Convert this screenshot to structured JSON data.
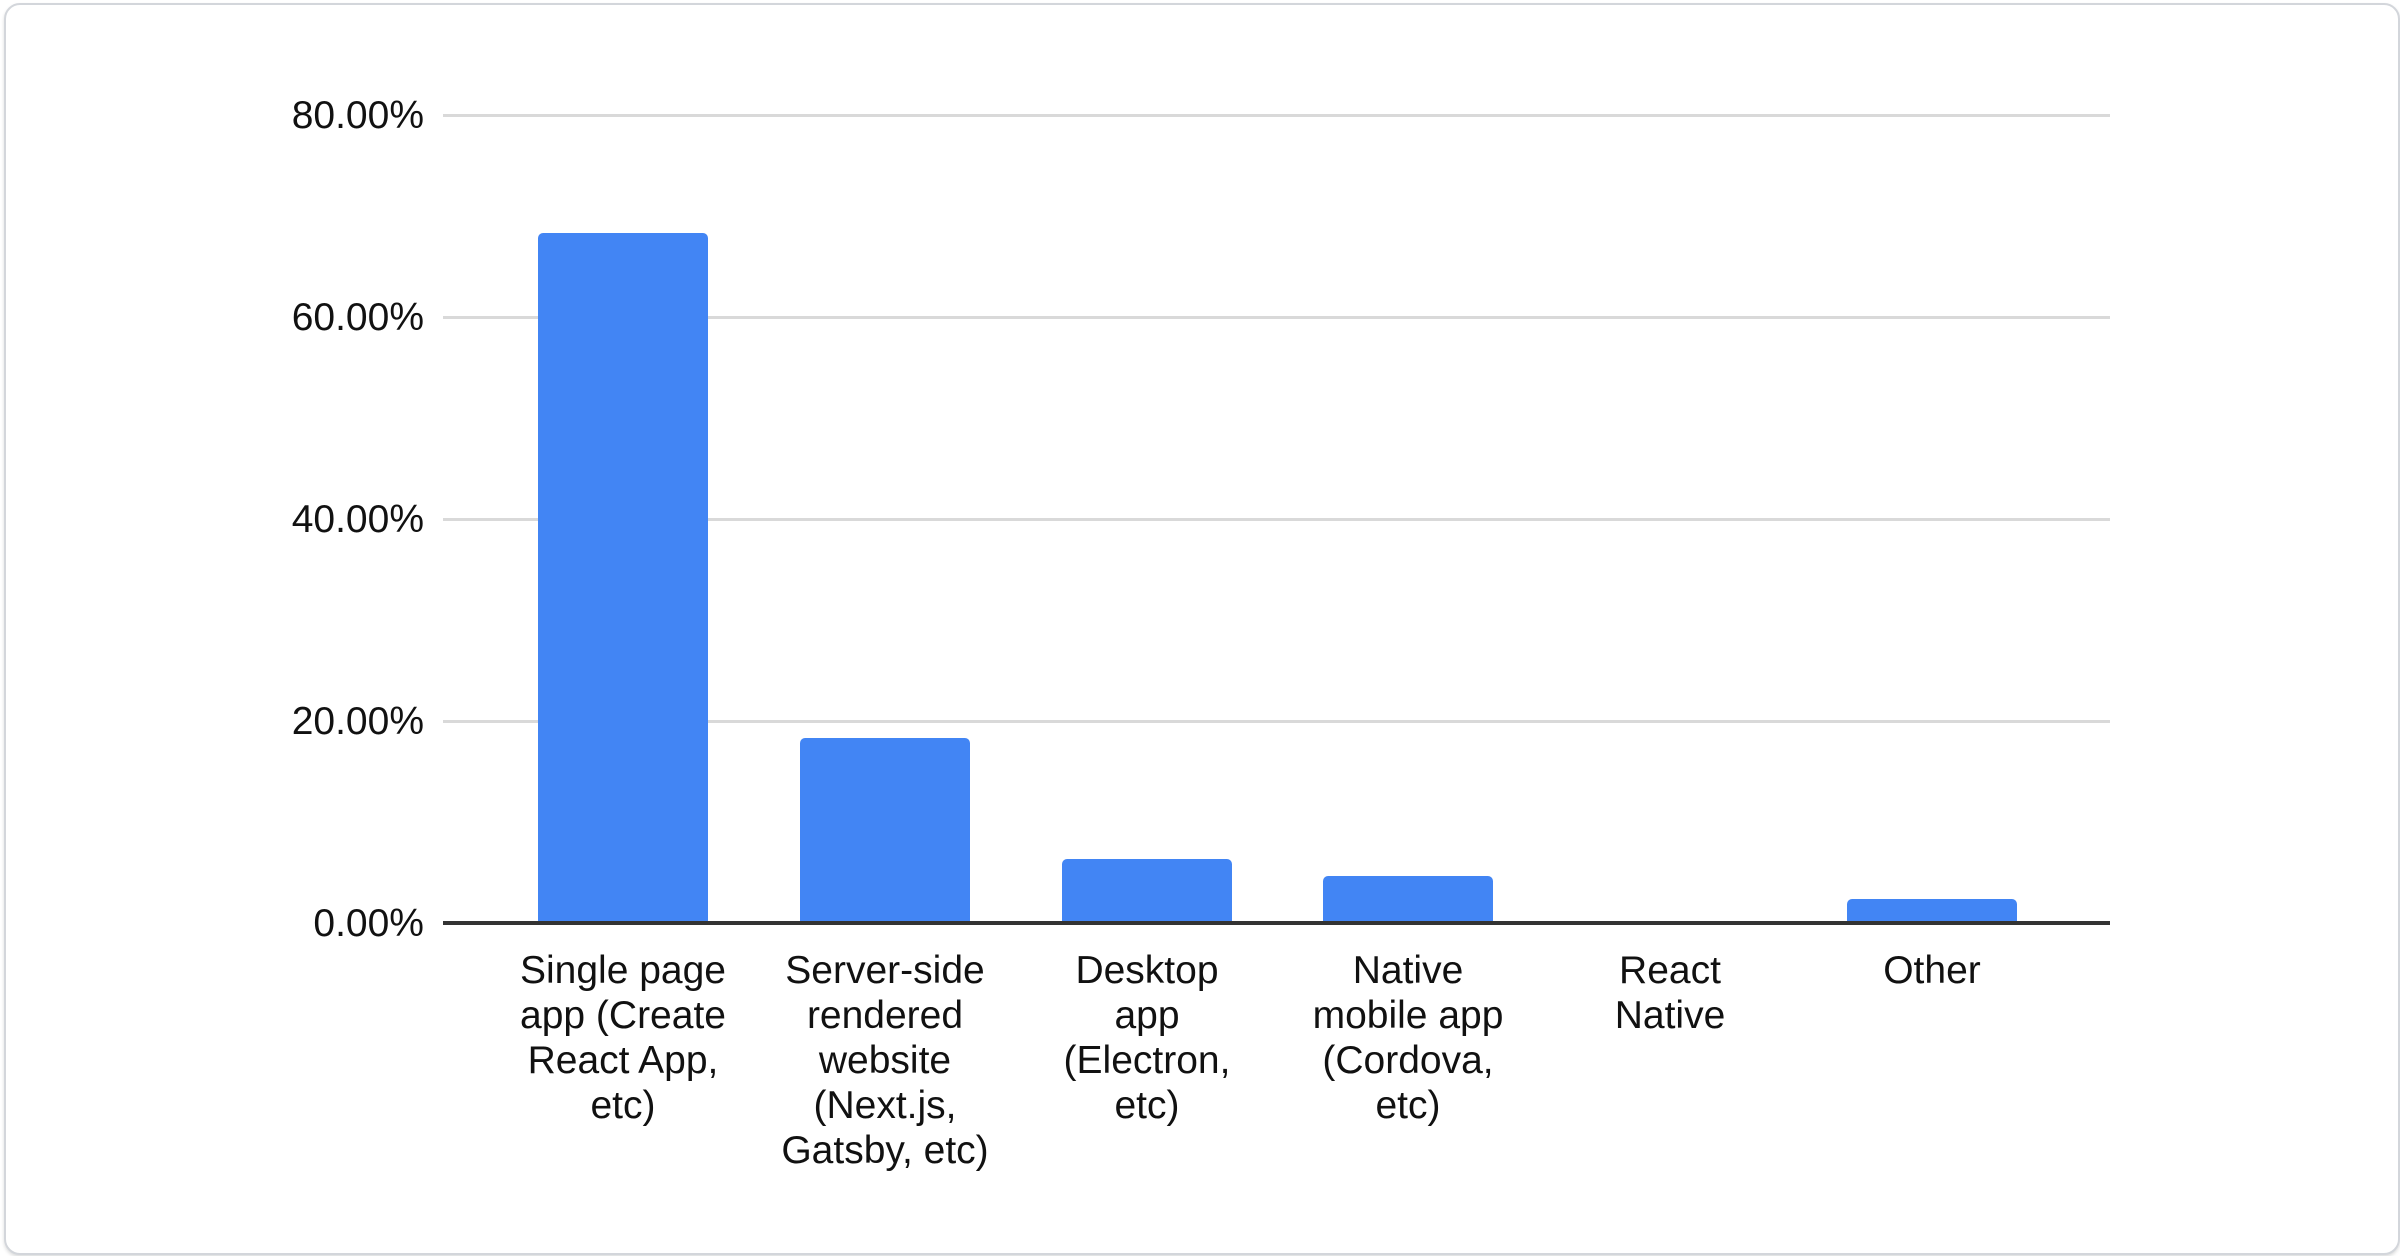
{
  "card": {
    "background": "#ffffff",
    "border_color": "#d3d6db"
  },
  "chart_data": {
    "type": "bar",
    "title": "",
    "xlabel": "",
    "ylabel": "",
    "ylim": [
      0,
      80
    ],
    "y_tick_step": 20,
    "grid": true,
    "legend": "none",
    "bar_color": "#4285f4",
    "grid_line_color": "#d9d9d9",
    "axis_line_color": "#333333",
    "text_color": "#111111",
    "y_ticks": [
      {
        "value": 80,
        "label": "80.00%"
      },
      {
        "value": 60,
        "label": "60.00%"
      },
      {
        "value": 40,
        "label": "40.00%"
      },
      {
        "value": 20,
        "label": "20.00%"
      },
      {
        "value": 0,
        "label": "0.00%"
      }
    ],
    "categories": [
      "Single page app (Create React App, etc)",
      "Server-side rendered website (Next.js, Gatsby, etc)",
      "Desktop app (Electron, etc)",
      "Native mobile app (Cordova, etc)",
      "React Native",
      "Other"
    ],
    "values": [
      68.3,
      18.3,
      6.3,
      4.7,
      0,
      2.4
    ],
    "columns": [
      {
        "category": "Single page app (Create React App, etc)",
        "value": 68.3,
        "lines": "Single page\napp (Create\nReact App,\netc)"
      },
      {
        "category": "Server-side rendered website (Next.js, Gatsby, etc)",
        "value": 18.3,
        "lines": "Server-side\nrendered\nwebsite\n(Next.js,\nGatsby, etc)"
      },
      {
        "category": "Desktop app (Electron, etc)",
        "value": 6.3,
        "lines": "Desktop\napp\n(Electron,\netc)"
      },
      {
        "category": "Native mobile app (Cordova, etc)",
        "value": 4.7,
        "lines": "Native\nmobile app\n(Cordova,\netc)"
      },
      {
        "category": "React Native",
        "value": 0,
        "lines": "React\nNative"
      },
      {
        "category": "Other",
        "value": 2.4,
        "lines": "Other"
      }
    ]
  }
}
